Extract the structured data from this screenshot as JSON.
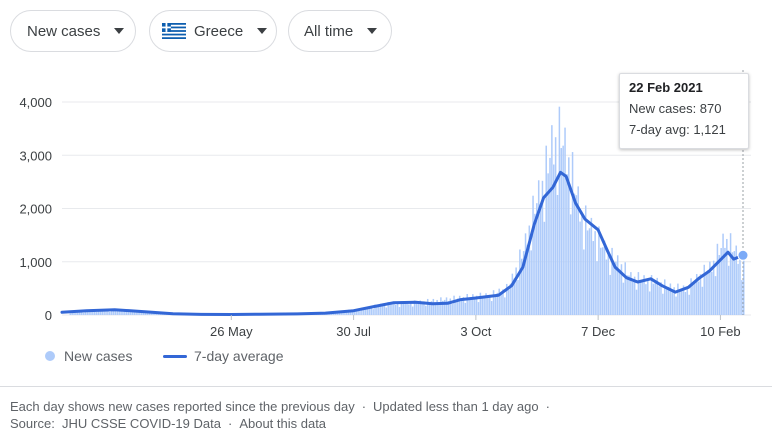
{
  "controls": {
    "metric": "New cases",
    "country": "Greece",
    "range": "All time"
  },
  "tooltip": {
    "date": "22 Feb 2021",
    "new_cases": "New cases: 870",
    "avg": "7-day avg: 1,121"
  },
  "legend": {
    "bars": "New cases",
    "line": "7-day average"
  },
  "footer": {
    "line1_text": "Each day shows new cases reported since the previous day",
    "line1_updated": "Updated less than 1 day ago",
    "source": "Source:  JHU CSSE COVID-19 Data",
    "about": "About this data"
  },
  "colors": {
    "bar": "#aecbfa",
    "line": "#3367d6",
    "grid": "#e8eaed",
    "hover": "#9aa0a6"
  },
  "chart_data": {
    "type": "bar",
    "ylim": [
      0,
      4000
    ],
    "y_ticks": [
      "4,000",
      "3,000",
      "2,000",
      "1,000",
      "0"
    ],
    "y_tick_values": [
      4000,
      3000,
      2000,
      1000,
      0
    ],
    "x_ticks": [
      "26 May",
      "30 Jul",
      "3 Oct",
      "7 Dec",
      "10 Feb"
    ],
    "x_tick_dates": [
      "2020-05-26",
      "2020-07-30",
      "2020-10-03",
      "2020-12-07",
      "2021-02-10"
    ],
    "x_range": [
      "2020-02-26",
      "2021-02-22"
    ],
    "series": [
      {
        "name": "New cases",
        "points": [
          [
            "2020-03-01",
            40
          ],
          [
            "2020-03-15",
            80
          ],
          [
            "2020-04-01",
            90
          ],
          [
            "2020-04-15",
            50
          ],
          [
            "2020-05-01",
            10
          ],
          [
            "2020-05-15",
            10
          ],
          [
            "2020-06-01",
            15
          ],
          [
            "2020-06-15",
            20
          ],
          [
            "2020-07-01",
            25
          ],
          [
            "2020-07-15",
            40
          ],
          [
            "2020-08-01",
            100
          ],
          [
            "2020-08-15",
            200
          ],
          [
            "2020-09-01",
            230
          ],
          [
            "2020-09-15",
            280
          ],
          [
            "2020-10-01",
            340
          ],
          [
            "2020-10-10",
            360
          ],
          [
            "2020-10-20",
            500
          ],
          [
            "2020-10-28",
            1200
          ],
          [
            "2020-11-03",
            2000
          ],
          [
            "2020-11-08",
            2500
          ],
          [
            "2020-11-12",
            3100
          ],
          [
            "2020-11-17",
            3300
          ],
          [
            "2020-11-22",
            2700
          ],
          [
            "2020-11-28",
            1800
          ],
          [
            "2020-12-05",
            1500
          ],
          [
            "2020-12-12",
            1100
          ],
          [
            "2020-12-18",
            950
          ],
          [
            "2020-12-24",
            700
          ],
          [
            "2020-12-31",
            650
          ],
          [
            "2021-01-08",
            600
          ],
          [
            "2021-01-15",
            500
          ],
          [
            "2021-01-22",
            480
          ],
          [
            "2021-01-29",
            700
          ],
          [
            "2021-02-05",
            900
          ],
          [
            "2021-02-12",
            1400
          ],
          [
            "2021-02-17",
            1200
          ],
          [
            "2021-02-22",
            870
          ]
        ]
      },
      {
        "name": "7-day average",
        "points": [
          [
            "2020-02-26",
            50
          ],
          [
            "2020-03-10",
            80
          ],
          [
            "2020-03-25",
            100
          ],
          [
            "2020-04-10",
            60
          ],
          [
            "2020-04-25",
            25
          ],
          [
            "2020-05-10",
            12
          ],
          [
            "2020-05-26",
            10
          ],
          [
            "2020-06-10",
            15
          ],
          [
            "2020-06-30",
            20
          ],
          [
            "2020-07-15",
            35
          ],
          [
            "2020-07-30",
            80
          ],
          [
            "2020-08-10",
            160
          ],
          [
            "2020-08-20",
            230
          ],
          [
            "2020-09-01",
            240
          ],
          [
            "2020-09-10",
            210
          ],
          [
            "2020-09-18",
            220
          ],
          [
            "2020-09-25",
            290
          ],
          [
            "2020-10-03",
            320
          ],
          [
            "2020-10-15",
            370
          ],
          [
            "2020-10-22",
            550
          ],
          [
            "2020-10-28",
            900
          ],
          [
            "2020-11-03",
            1700
          ],
          [
            "2020-11-08",
            2200
          ],
          [
            "2020-11-13",
            2400
          ],
          [
            "2020-11-17",
            2680
          ],
          [
            "2020-11-20",
            2600
          ],
          [
            "2020-11-25",
            2100
          ],
          [
            "2020-11-30",
            1800
          ],
          [
            "2020-12-07",
            1600
          ],
          [
            "2020-12-12",
            1200
          ],
          [
            "2020-12-16",
            900
          ],
          [
            "2020-12-22",
            700
          ],
          [
            "2020-12-28",
            620
          ],
          [
            "2021-01-04",
            680
          ],
          [
            "2021-01-10",
            550
          ],
          [
            "2021-01-17",
            430
          ],
          [
            "2021-01-24",
            520
          ],
          [
            "2021-01-30",
            700
          ],
          [
            "2021-02-04",
            820
          ],
          [
            "2021-02-09",
            1000
          ],
          [
            "2021-02-14",
            1180
          ],
          [
            "2021-02-17",
            1050
          ],
          [
            "2021-02-22",
            1121
          ]
        ]
      }
    ],
    "hover_date": "2021-02-22",
    "grid": true,
    "legend_position": "bottom-left"
  }
}
